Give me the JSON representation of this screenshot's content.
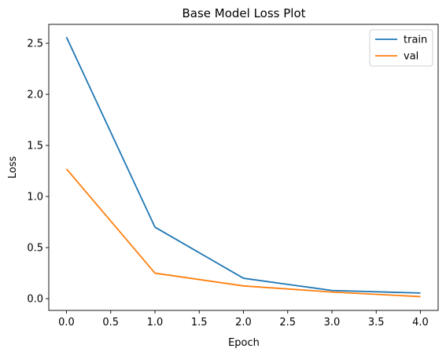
{
  "chart_data": {
    "type": "line",
    "title": "Base Model Loss Plot",
    "xlabel": "Epoch",
    "ylabel": "Loss",
    "xlim": [
      -0.2,
      4.2
    ],
    "ylim": [
      -0.115,
      2.685
    ],
    "xticks": [
      0.0,
      0.5,
      1.0,
      1.5,
      2.0,
      2.5,
      3.0,
      3.5,
      4.0
    ],
    "xtick_labels": [
      "0.0",
      "0.5",
      "1.0",
      "1.5",
      "2.0",
      "2.5",
      "3.0",
      "3.5",
      "4.0"
    ],
    "yticks": [
      0.0,
      0.5,
      1.0,
      1.5,
      2.0,
      2.5
    ],
    "ytick_labels": [
      "0.0",
      "0.5",
      "1.0",
      "1.5",
      "2.0",
      "2.5"
    ],
    "grid": false,
    "legend_position": "upper right",
    "x": [
      0,
      1,
      2,
      3,
      4
    ],
    "series": [
      {
        "name": "train",
        "color": "#1f77b4",
        "values": [
          2.56,
          0.7,
          0.2,
          0.08,
          0.055
        ]
      },
      {
        "name": "val",
        "color": "#ff7f0e",
        "values": [
          1.27,
          0.25,
          0.125,
          0.065,
          0.02
        ]
      }
    ]
  }
}
